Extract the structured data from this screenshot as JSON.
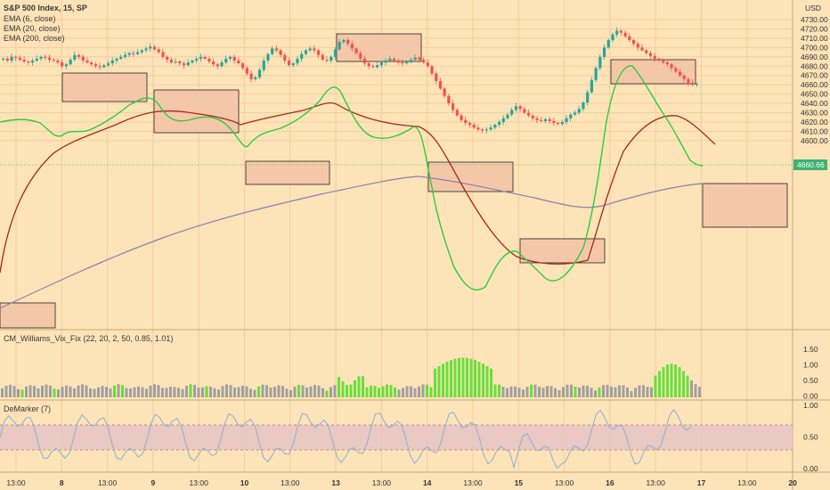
{
  "header": {
    "symbol_title": "S&P 500 Index, 15, SP",
    "currency": "USD",
    "indicators": [
      "EMA (6, close)",
      "EMA (20, close)",
      "EMA (200, close)"
    ]
  },
  "price_axis": {
    "ticks": [
      "4730.00",
      "4720.00",
      "4710.00",
      "4700.00",
      "4690.00",
      "4680.00",
      "4670.00",
      "4660.00",
      "4650.00",
      "4640.00",
      "4630.00",
      "4620.00",
      "4610.00",
      "4600.00"
    ],
    "last_price": "4660.66"
  },
  "vix_panel": {
    "title": "CM_Williams_Vix_Fix (22, 20, 2, 50, 0.85, 1.01)",
    "ticks": [
      "1.50",
      "1.00",
      "0.50",
      "0.00"
    ]
  },
  "demarker_panel": {
    "title": "DeMarker (7)",
    "ticks": [
      "1.00",
      "0.50",
      "0.00"
    ]
  },
  "time_axis": {
    "labels": [
      "13:00",
      "8",
      "13:00",
      "9",
      "13:00",
      "10",
      "13:00",
      "13",
      "13:00",
      "14",
      "13:00",
      "15",
      "13:00",
      "16",
      "13:00",
      "17",
      "13:00",
      "20"
    ]
  },
  "colors": {
    "background": "#fde3b8",
    "up_candle": "#26a69a",
    "down_candle": "#ef5350",
    "ema6": "#2ecc40",
    "ema20": "#a52a1a",
    "ema200": "#8a80b0",
    "vix_green": "#66e03a",
    "vix_gray": "#a0a0a0",
    "zone_fill": "#f5c7a9",
    "demarker_line": "#8ab0d6",
    "demarker_band": "#e8c4c4"
  },
  "chart_data": {
    "type": "candlestick",
    "title": "S&P 500 Index, 15, SP",
    "ylim": [
      4600,
      4735
    ],
    "close_series": [
      4688,
      4686,
      4690,
      4689,
      4687,
      4685,
      4684,
      4686,
      4688,
      4690,
      4689,
      4687,
      4686,
      4684,
      4680,
      4682,
      4687,
      4692,
      4690,
      4686,
      4684,
      4682,
      4680,
      4679,
      4681,
      4683,
      4686,
      4688,
      4690,
      4692,
      4694,
      4693,
      4695,
      4697,
      4699,
      4701,
      4698,
      4695,
      4690,
      4687,
      4684,
      4685,
      4683,
      4681,
      4684,
      4686,
      4688,
      4690,
      4688,
      4685,
      4682,
      4680,
      4684,
      4688,
      4690,
      4686,
      4683,
      4678,
      4672,
      4666,
      4668,
      4676,
      4686,
      4693,
      4699,
      4697,
      4692,
      4686,
      4681,
      4683,
      4688,
      4693,
      4697,
      4699,
      4697,
      4692,
      4687,
      4686,
      4690,
      4698,
      4706,
      4708,
      4704,
      4699,
      4694,
      4688,
      4683,
      4680,
      4679,
      4681,
      4684,
      4686,
      4688,
      4686,
      4684,
      4683,
      4685,
      4687,
      4689,
      4687,
      4684,
      4680,
      4672,
      4664,
      4656,
      4648,
      4640,
      4633,
      4627,
      4622,
      4619,
      4617,
      4614,
      4612,
      4611,
      4612,
      4614,
      4617,
      4620,
      4624,
      4628,
      4633,
      4637,
      4634,
      4630,
      4627,
      4624,
      4622,
      4621,
      4623,
      4621,
      4619,
      4618,
      4620,
      4624,
      4628,
      4630,
      4634,
      4641,
      4652,
      4665,
      4678,
      4690,
      4700,
      4708,
      4714,
      4718,
      4716,
      4712,
      4708,
      4704,
      4700,
      4697,
      4694,
      4691,
      4688,
      4686,
      4684,
      4682,
      4678,
      4674,
      4670,
      4666,
      4662,
      4660,
      4661
    ]
  }
}
